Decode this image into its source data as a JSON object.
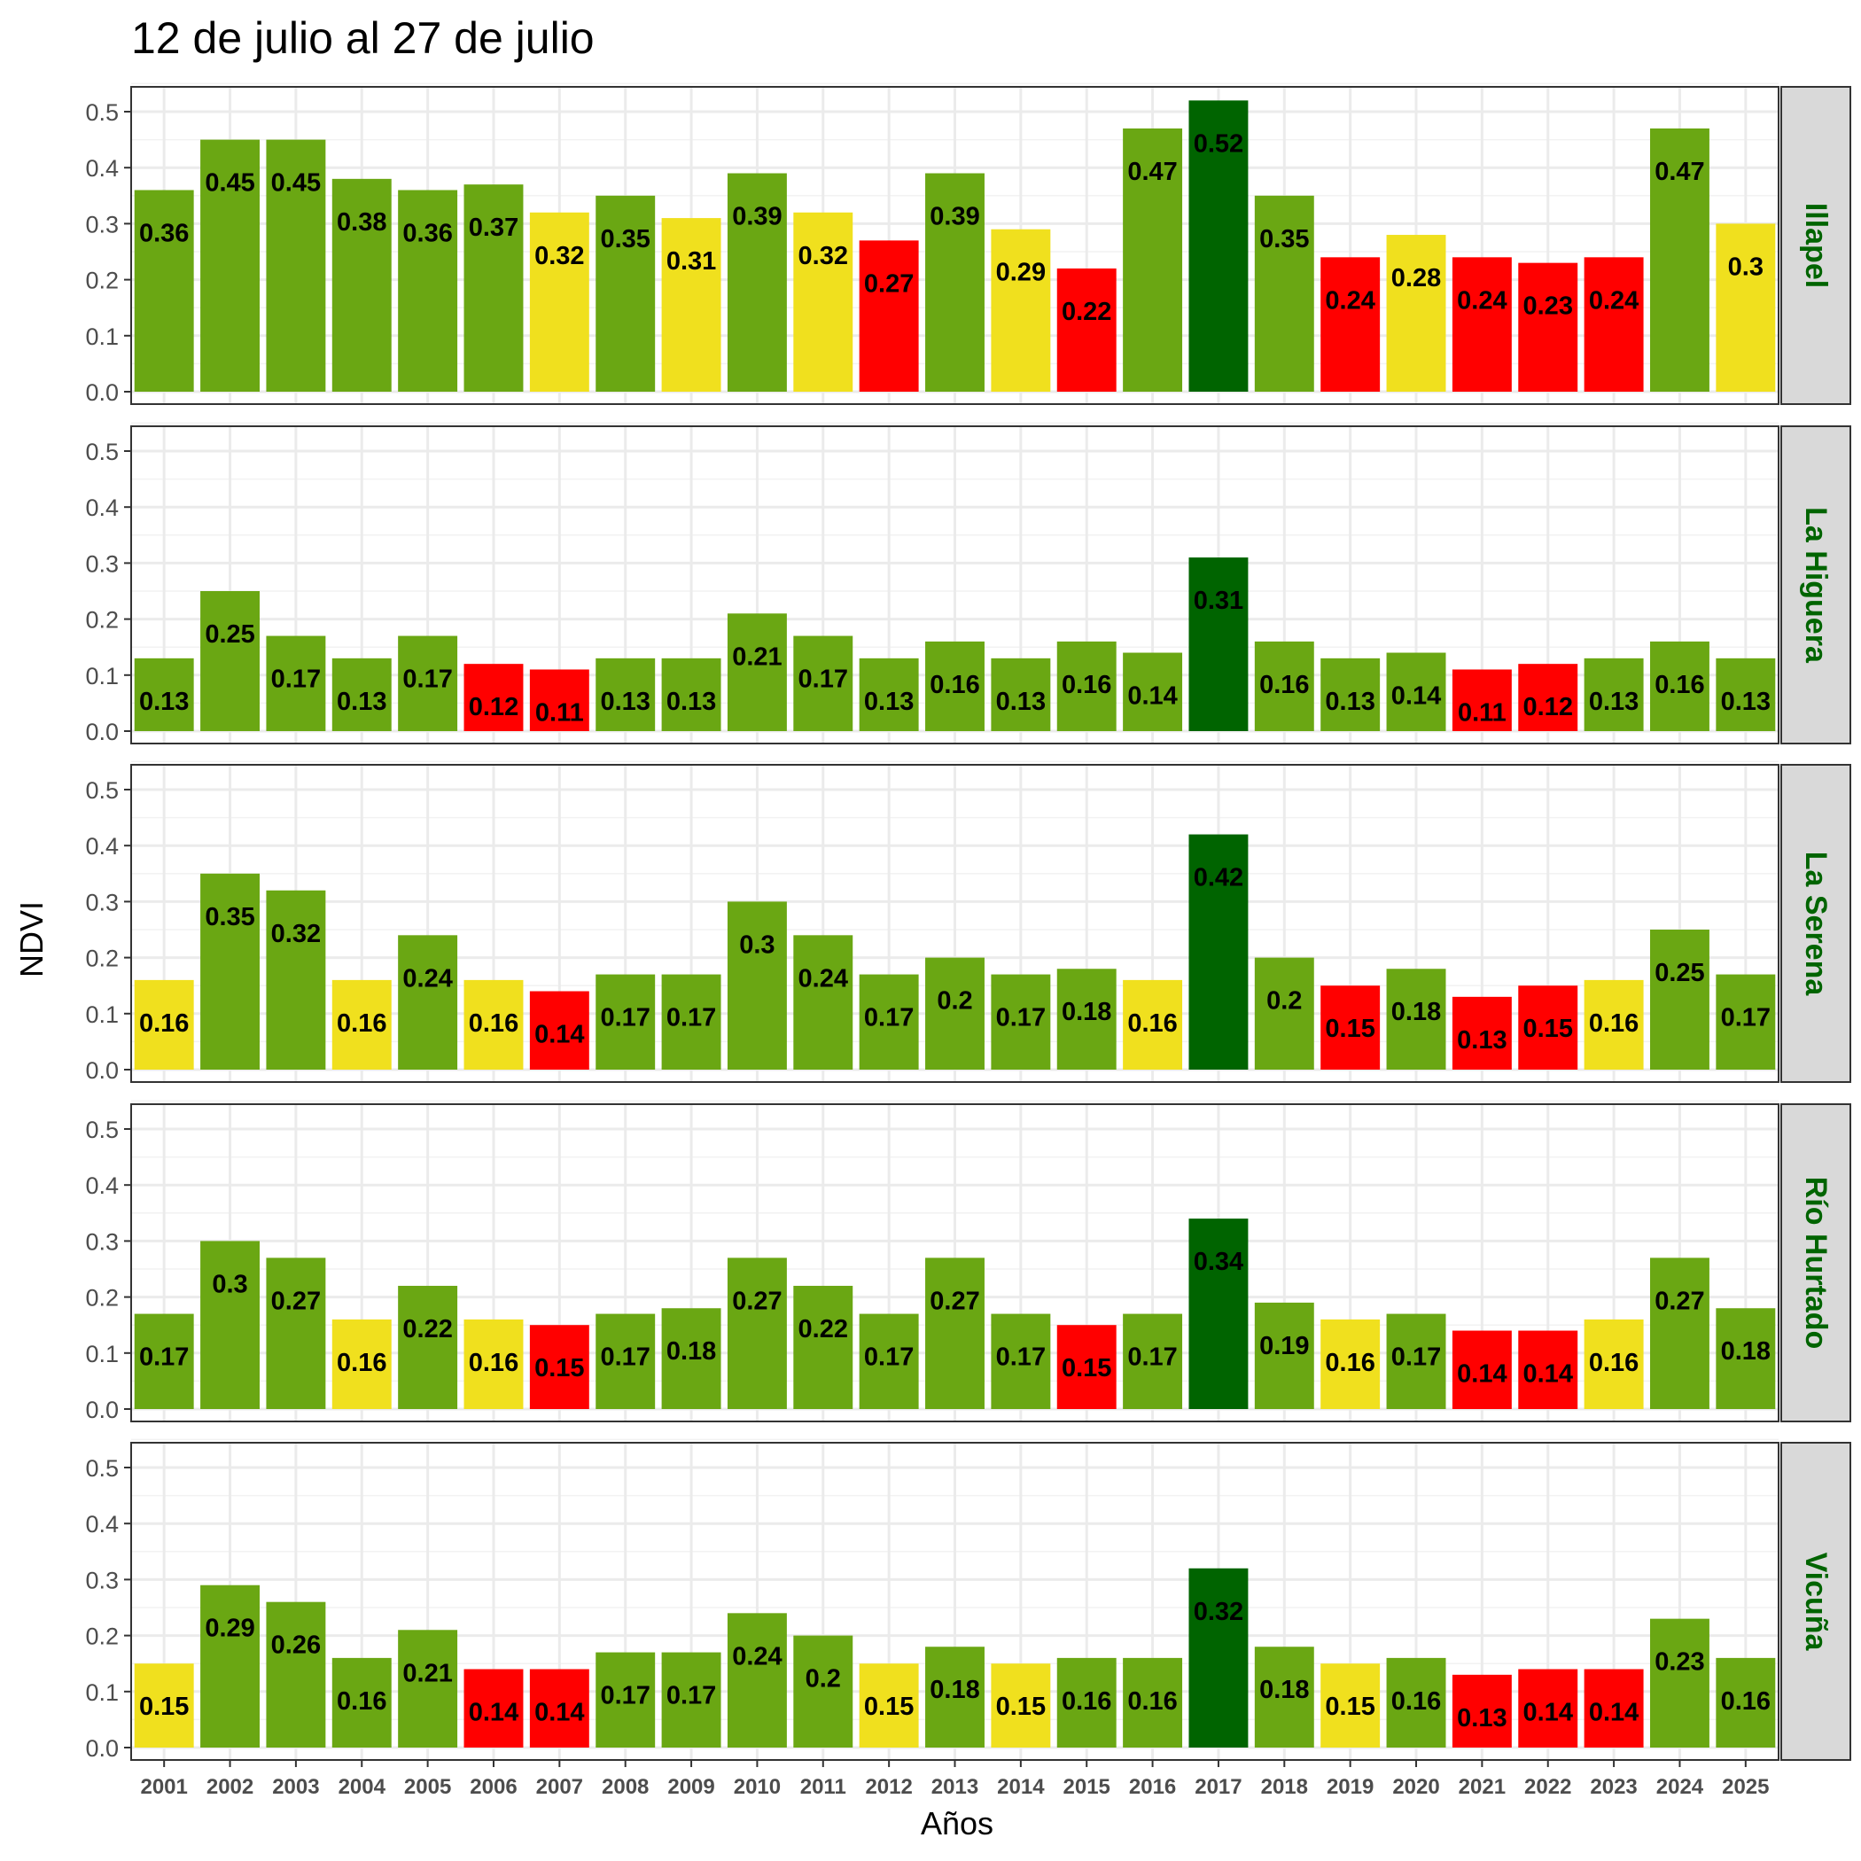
{
  "chart_data": {
    "type": "bar",
    "title": "12 de julio al 27 de julio",
    "xlabel": "Años",
    "ylabel": "NDVI",
    "ylim": [
      0,
      0.55
    ],
    "yticks": [
      "0.0",
      "0.1",
      "0.2",
      "0.3",
      "0.4",
      "0.5"
    ],
    "grid": true,
    "facet_strip_color": "#006400",
    "categories": [
      "2001",
      "2002",
      "2003",
      "2004",
      "2005",
      "2006",
      "2007",
      "2008",
      "2009",
      "2010",
      "2011",
      "2012",
      "2013",
      "2014",
      "2015",
      "2016",
      "2017",
      "2018",
      "2019",
      "2020",
      "2021",
      "2022",
      "2023",
      "2024",
      "2025"
    ],
    "color_key": {
      "g": "#6aa713",
      "d": "#006400",
      "y": "#f0e01e",
      "r": "#ff0000"
    },
    "panels": [
      {
        "name": "Illapel",
        "values": [
          0.36,
          0.45,
          0.45,
          0.38,
          0.36,
          0.37,
          0.32,
          0.35,
          0.31,
          0.39,
          0.32,
          0.27,
          0.39,
          0.29,
          0.22,
          0.47,
          0.52,
          0.35,
          0.24,
          0.28,
          0.24,
          0.23,
          0.24,
          0.47,
          0.3
        ],
        "labels": [
          "0.36",
          "0.45",
          "0.45",
          "0.38",
          "0.36",
          "0.37",
          "0.32",
          "0.35",
          "0.31",
          "0.39",
          "0.32",
          "0.27",
          "0.39",
          "0.29",
          "0.22",
          "0.47",
          "0.52",
          "0.35",
          "0.24",
          "0.28",
          "0.24",
          "0.23",
          "0.24",
          "0.47",
          "0.3"
        ],
        "colors": [
          "g",
          "g",
          "g",
          "g",
          "g",
          "g",
          "y",
          "g",
          "y",
          "g",
          "y",
          "r",
          "g",
          "y",
          "r",
          "g",
          "d",
          "g",
          "r",
          "y",
          "r",
          "r",
          "r",
          "g",
          "y"
        ]
      },
      {
        "name": "La Higuera",
        "values": [
          0.13,
          0.25,
          0.17,
          0.13,
          0.17,
          0.12,
          0.11,
          0.13,
          0.13,
          0.21,
          0.17,
          0.13,
          0.16,
          0.13,
          0.16,
          0.14,
          0.31,
          0.16,
          0.13,
          0.14,
          0.11,
          0.12,
          0.13,
          0.16,
          0.13
        ],
        "labels": [
          "0.13",
          "0.25",
          "0.17",
          "0.13",
          "0.17",
          "0.12",
          "0.11",
          "0.13",
          "0.13",
          "0.21",
          "0.17",
          "0.13",
          "0.16",
          "0.13",
          "0.16",
          "0.14",
          "0.31",
          "0.16",
          "0.13",
          "0.14",
          "0.11",
          "0.12",
          "0.13",
          "0.16",
          "0.13"
        ],
        "colors": [
          "g",
          "g",
          "g",
          "g",
          "g",
          "r",
          "r",
          "g",
          "g",
          "g",
          "g",
          "g",
          "g",
          "g",
          "g",
          "g",
          "d",
          "g",
          "g",
          "g",
          "r",
          "r",
          "g",
          "g",
          "g"
        ]
      },
      {
        "name": "La Serena",
        "values": [
          0.16,
          0.35,
          0.32,
          0.16,
          0.24,
          0.16,
          0.14,
          0.17,
          0.17,
          0.3,
          0.24,
          0.17,
          0.2,
          0.17,
          0.18,
          0.16,
          0.42,
          0.2,
          0.15,
          0.18,
          0.13,
          0.15,
          0.16,
          0.25,
          0.17
        ],
        "labels": [
          "0.16",
          "0.35",
          "0.32",
          "0.16",
          "0.24",
          "0.16",
          "0.14",
          "0.17",
          "0.17",
          "0.3",
          "0.24",
          "0.17",
          "0.2",
          "0.17",
          "0.18",
          "0.16",
          "0.42",
          "0.2",
          "0.15",
          "0.18",
          "0.13",
          "0.15",
          "0.16",
          "0.25",
          "0.17"
        ],
        "colors": [
          "y",
          "g",
          "g",
          "y",
          "g",
          "y",
          "r",
          "g",
          "g",
          "g",
          "g",
          "g",
          "g",
          "g",
          "g",
          "y",
          "d",
          "g",
          "r",
          "g",
          "r",
          "r",
          "y",
          "g",
          "g"
        ]
      },
      {
        "name": "Río Hurtado",
        "values": [
          0.17,
          0.3,
          0.27,
          0.16,
          0.22,
          0.16,
          0.15,
          0.17,
          0.18,
          0.27,
          0.22,
          0.17,
          0.27,
          0.17,
          0.15,
          0.17,
          0.34,
          0.19,
          0.16,
          0.17,
          0.14,
          0.14,
          0.16,
          0.27,
          0.18
        ],
        "labels": [
          "0.17",
          "0.3",
          "0.27",
          "0.16",
          "0.22",
          "0.16",
          "0.15",
          "0.17",
          "0.18",
          "0.27",
          "0.22",
          "0.17",
          "0.27",
          "0.17",
          "0.15",
          "0.17",
          "0.34",
          "0.19",
          "0.16",
          "0.17",
          "0.14",
          "0.14",
          "0.16",
          "0.27",
          "0.18"
        ],
        "colors": [
          "g",
          "g",
          "g",
          "y",
          "g",
          "y",
          "r",
          "g",
          "g",
          "g",
          "g",
          "g",
          "g",
          "g",
          "r",
          "g",
          "d",
          "g",
          "y",
          "g",
          "r",
          "r",
          "y",
          "g",
          "g"
        ]
      },
      {
        "name": "Vicuña",
        "values": [
          0.15,
          0.29,
          0.26,
          0.16,
          0.21,
          0.14,
          0.14,
          0.17,
          0.17,
          0.24,
          0.2,
          0.15,
          0.18,
          0.15,
          0.16,
          0.16,
          0.32,
          0.18,
          0.15,
          0.16,
          0.13,
          0.14,
          0.14,
          0.23,
          0.16
        ],
        "labels": [
          "0.15",
          "0.29",
          "0.26",
          "0.16",
          "0.21",
          "0.14",
          "0.14",
          "0.17",
          "0.17",
          "0.24",
          "0.2",
          "0.15",
          "0.18",
          "0.15",
          "0.16",
          "0.16",
          "0.32",
          "0.18",
          "0.15",
          "0.16",
          "0.13",
          "0.14",
          "0.14",
          "0.23",
          "0.16"
        ],
        "colors": [
          "y",
          "g",
          "g",
          "g",
          "g",
          "r",
          "r",
          "g",
          "g",
          "g",
          "g",
          "y",
          "g",
          "y",
          "g",
          "g",
          "d",
          "g",
          "y",
          "g",
          "r",
          "r",
          "r",
          "g",
          "g"
        ]
      }
    ]
  }
}
